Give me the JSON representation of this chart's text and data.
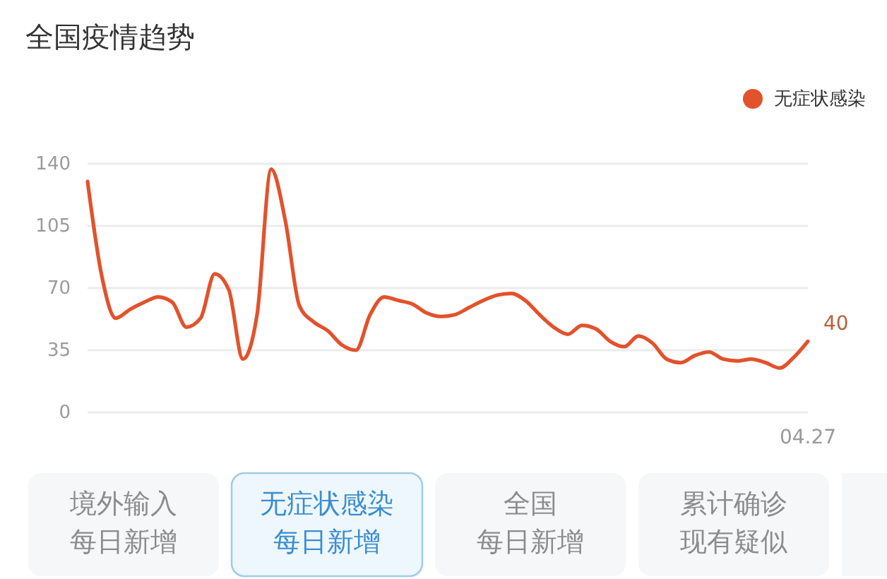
{
  "chart_data": {
    "type": "line",
    "title": "全国疫情趋势",
    "categories": [
      null,
      null,
      null,
      null,
      null,
      null,
      null,
      null,
      null,
      null,
      null,
      null,
      null,
      null,
      null,
      null,
      null,
      null,
      null,
      null,
      null,
      null,
      null,
      null,
      null,
      null,
      null,
      null,
      null,
      null,
      null,
      null,
      null,
      null,
      null,
      null,
      null,
      null,
      null,
      null,
      null,
      null,
      null,
      null,
      null,
      null,
      null,
      null,
      null,
      null,
      null,
      "04.27"
    ],
    "series": [
      {
        "name": "无症状感染",
        "color": "#e2522b",
        "values": [
          130,
          77,
          53,
          58,
          62,
          65,
          62,
          48,
          53,
          78,
          69,
          30,
          55,
          137,
          108,
          60,
          51,
          46,
          38,
          35,
          55,
          65,
          63,
          61,
          56,
          54,
          55,
          59,
          63,
          66,
          67,
          63,
          55,
          48,
          44,
          49,
          47,
          40,
          37,
          43,
          39,
          30,
          28,
          32,
          34,
          30,
          29,
          30,
          28,
          25,
          31,
          40
        ],
        "value_labels": [
          null,
          null,
          null,
          null,
          null,
          null,
          null,
          null,
          null,
          null,
          null,
          null,
          null,
          null,
          null,
          null,
          null,
          null,
          null,
          null,
          null,
          null,
          null,
          null,
          null,
          null,
          null,
          null,
          null,
          null,
          null,
          null,
          null,
          null,
          null,
          null,
          null,
          null,
          null,
          null,
          null,
          null,
          null,
          null,
          null,
          null,
          null,
          null,
          null,
          null,
          null,
          "40"
        ]
      }
    ],
    "ylim": [
      0,
      140
    ],
    "yticks": [
      0,
      35,
      70,
      105,
      140
    ],
    "grid": "y",
    "legend": "top right",
    "annotations": [
      "境外输入",
      "每日新增",
      "无症状感染",
      "每日新增",
      "全国",
      "每日新增",
      "累计确诊",
      "现有疑似"
    ]
  }
}
